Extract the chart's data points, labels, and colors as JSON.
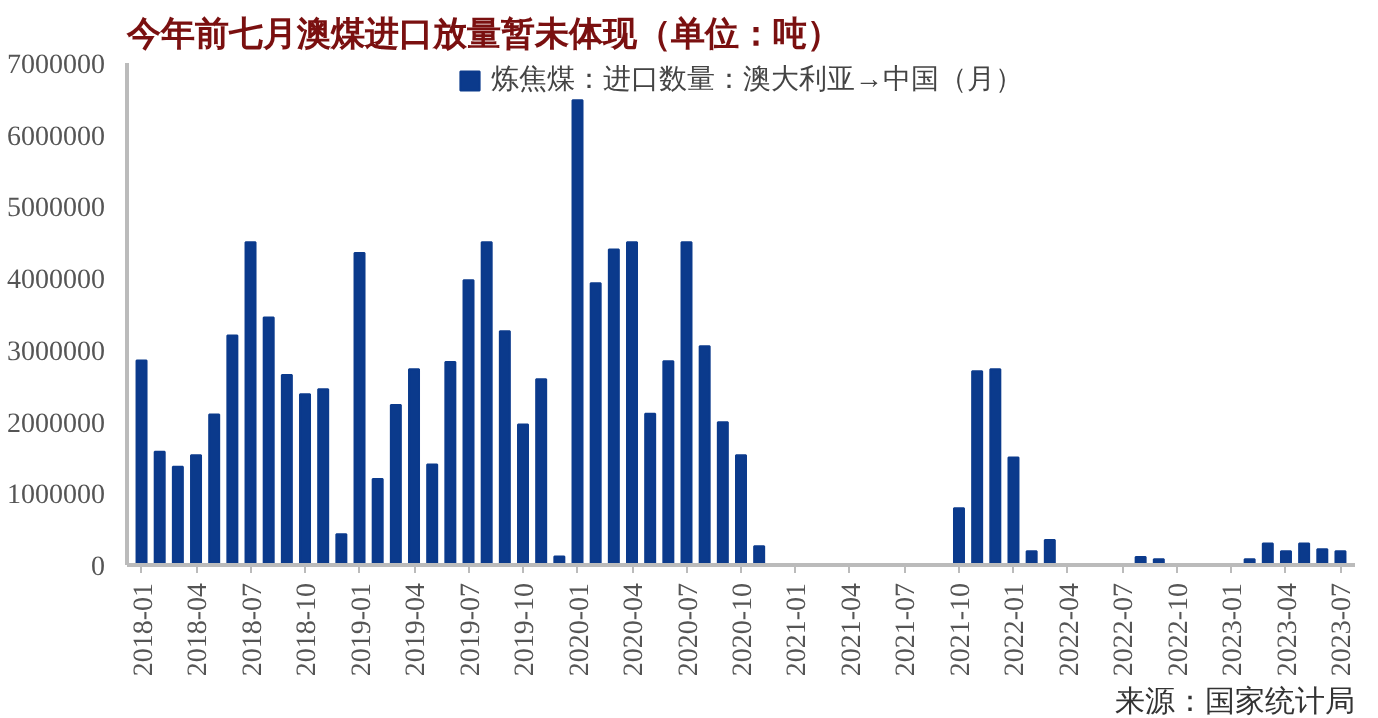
{
  "chart_data": {
    "type": "bar",
    "title": "今年前七月澳煤进口放量暂未体现（单位：吨）",
    "categories": [
      "2018-01",
      null,
      null,
      "2018-04",
      null,
      null,
      "2018-07",
      null,
      null,
      "2018-10",
      null,
      null,
      "2019-01",
      null,
      null,
      "2019-04",
      null,
      null,
      "2019-07",
      null,
      null,
      "2019-10",
      null,
      null,
      "2020-01",
      null,
      null,
      "2020-04",
      null,
      null,
      "2020-07",
      null,
      null,
      "2020-10",
      null,
      null,
      "2021-01",
      null,
      null,
      "2021-04",
      null,
      null,
      "2021-07",
      null,
      null,
      "2021-10",
      null,
      null,
      "2022-01",
      null,
      null,
      "2022-04",
      null,
      null,
      "2022-07",
      null,
      null,
      "2022-10",
      null,
      null,
      "2023-01",
      null,
      null,
      "2023-04",
      null,
      null,
      "2023-07"
    ],
    "series": [
      {
        "name": "炼焦煤：进口数量：澳大利亚→中国（月）",
        "color": "#0b3a8c",
        "values": [
          2850000,
          1580000,
          1370000,
          1530000,
          2100000,
          3200000,
          4500000,
          3450000,
          2650000,
          2380000,
          2450000,
          430000,
          4350000,
          1200000,
          2230000,
          2730000,
          1400000,
          2830000,
          3970000,
          4500000,
          3260000,
          1960000,
          2590000,
          120000,
          6480000,
          3930000,
          4400000,
          4500000,
          2110000,
          2840000,
          4500000,
          3050000,
          1990000,
          1530000,
          260000,
          0,
          0,
          0,
          0,
          0,
          0,
          0,
          0,
          0,
          0,
          790000,
          2700000,
          2730000,
          1500000,
          190000,
          350000,
          0,
          0,
          0,
          0,
          110000,
          80000,
          0,
          0,
          0,
          0,
          80000,
          300000,
          190000,
          300000,
          220000,
          190000
        ]
      }
    ],
    "ylim": [
      0,
      7000000
    ],
    "yticks": [
      0,
      1000000,
      2000000,
      3000000,
      4000000,
      5000000,
      6000000,
      7000000
    ],
    "legend": "top",
    "grid": false,
    "annotations": [
      "来源：国家统计局"
    ]
  }
}
